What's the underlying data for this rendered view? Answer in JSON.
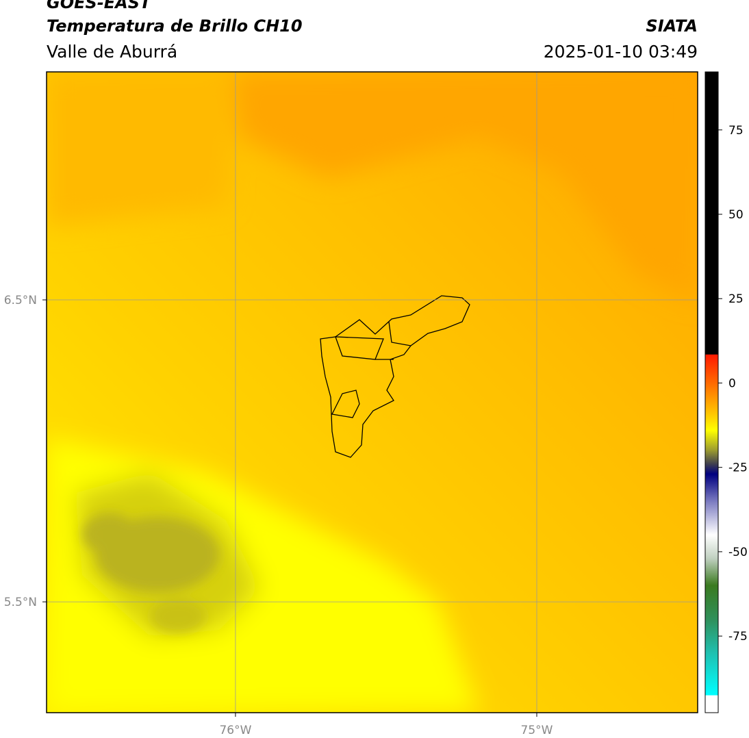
{
  "header": {
    "title": "GOES-EAST",
    "subtitle": "Temperatura de Brillo CH10",
    "region": "Valle de Aburrá",
    "source": "SIATA",
    "date": "2025-01-10 03:49"
  },
  "map": {
    "xlim": [
      -76.627,
      -74.466
    ],
    "ylim": [
      5.133,
      7.255
    ],
    "xticks": [
      {
        "value": -76,
        "label": "76°W"
      },
      {
        "value": -75,
        "label": "75°W"
      }
    ],
    "yticks": [
      {
        "value": 6.5,
        "label": "6.5°N"
      },
      {
        "value": 5.5,
        "label": "5.5°N"
      }
    ],
    "grid": true
  },
  "colorbar": {
    "lim": [
      -97.7,
      92.2
    ],
    "ticks": [
      75,
      50,
      25,
      0,
      -25,
      -50,
      -75
    ],
    "stops": [
      [
        92.2,
        "#000000"
      ],
      [
        8.5,
        "#000000"
      ],
      [
        8.4,
        "#ff1a00"
      ],
      [
        0,
        "#ff6a00"
      ],
      [
        -10,
        "#ffd000"
      ],
      [
        -14,
        "#ffff00"
      ],
      [
        -20,
        "#9a9a30"
      ],
      [
        -24,
        "#404050"
      ],
      [
        -27,
        "#000080"
      ],
      [
        -35,
        "#7a7ac0"
      ],
      [
        -45,
        "#ffffff"
      ],
      [
        -52,
        "#c0d0c0"
      ],
      [
        -60,
        "#3a7a20"
      ],
      [
        -70,
        "#30905a"
      ],
      [
        -80,
        "#20c0b0"
      ],
      [
        -92.5,
        "#00ffff"
      ],
      [
        -92.6,
        "#ffffff"
      ],
      [
        -97.7,
        "#ffffff"
      ]
    ]
  }
}
